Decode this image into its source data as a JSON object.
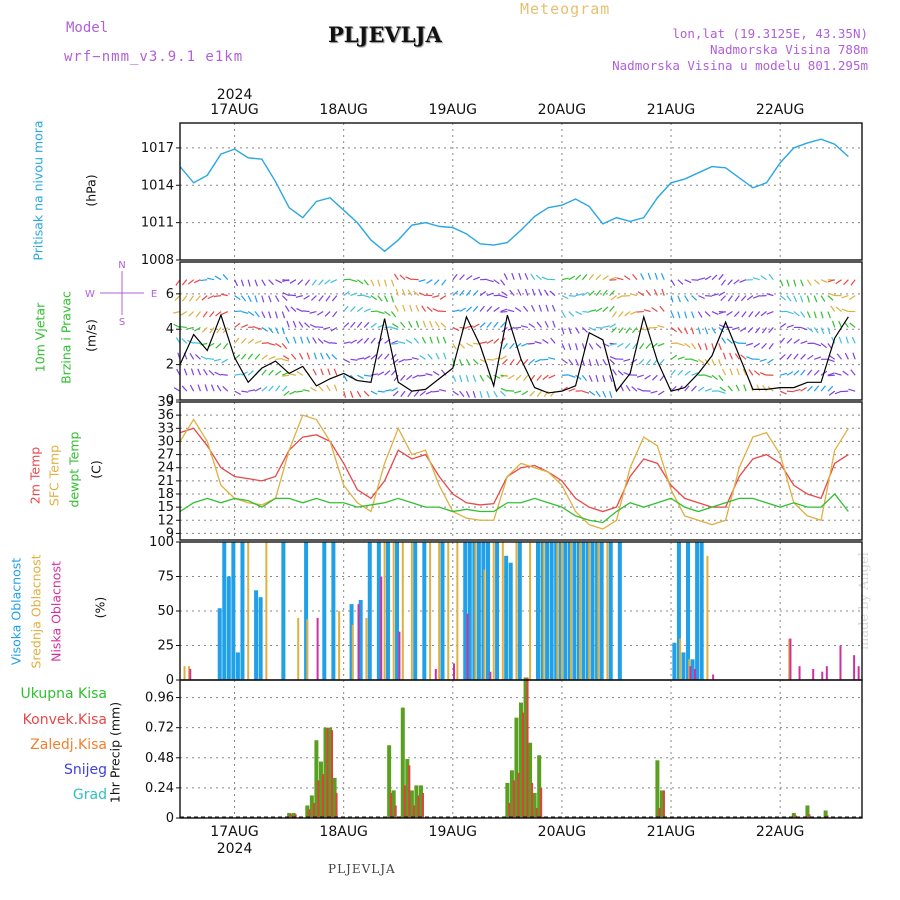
{
  "header": {
    "model_label": "Model",
    "model_name": "wrf−nmm_v3.9.1  e1km",
    "station": "PLJEVLJA",
    "meteogram_title": "Meteogram",
    "info_lines": [
      "lon,lat (19.3125E, 43.35N)",
      "Nadmorska Visina 788m",
      "Nadmorska Visina u modelu 801.295m"
    ],
    "footer_station": "PLJEVLJA",
    "watermark": "made by Angel"
  },
  "colors": {
    "pressure": "#29a8e0",
    "temp2m": "#e84848",
    "sfc": "#e0b040",
    "dewpt": "#30c030",
    "visoka": "#20a0e8",
    "srednja": "#e0b040",
    "niska": "#d030a0",
    "precip_total": "#5aa020",
    "precip_conv": "#e04040",
    "wind_purple": "#8040e0",
    "wind_speed": "#000000"
  },
  "axes": {
    "year_label": "2024",
    "date_labels": [
      "17AUG",
      "18AUG",
      "19AUG",
      "20AUG",
      "21AUG",
      "22AUG"
    ],
    "wind_compass": {
      "n": "N",
      "w": "W",
      "e": "E",
      "s": "S"
    }
  },
  "panel_labels": {
    "pressure": {
      "name": "Pritisak na nivou mora",
      "unit": "(hPa)"
    },
    "wind": {
      "name1": "10m Vjetar",
      "name2": "Brzina i Pravac",
      "unit": "(m/s)"
    },
    "temp": {
      "name1": "2m Temp",
      "name2": "SFC Temp",
      "name3": "dewpt Temp",
      "unit": "(C)"
    },
    "cloud": {
      "name1": "Visoka Oblacnost",
      "name2": "Srednja Oblacnost",
      "name3": "Niska Oblacnost",
      "unit": "(%)"
    },
    "precip": {
      "legend": [
        "Ukupna Kisa",
        "Konvek.Kisa",
        "Zaledj.Kisa",
        "Snijeg",
        "Grad"
      ],
      "unit": "1hr Precip (mm)"
    }
  },
  "chart_data": [
    {
      "type": "line",
      "panel": "pressure",
      "x_unit": "hours since 16 Aug 12 UTC",
      "ylim": [
        1008,
        1019
      ],
      "yticks": [
        1008,
        1011,
        1014,
        1017
      ],
      "series": [
        {
          "x": [
            0,
            3,
            6,
            9,
            12,
            15,
            18,
            21,
            24,
            27,
            30,
            33,
            36,
            39,
            42,
            45,
            48,
            51,
            54,
            57,
            60,
            63,
            66,
            69,
            72,
            75,
            78,
            81,
            84,
            87,
            90,
            93,
            96,
            99,
            102,
            105,
            108,
            111,
            114,
            117,
            120,
            123,
            126,
            129,
            132,
            135,
            138,
            141,
            144,
            147
          ],
          "values": [
            1015.5,
            1014.2,
            1014.8,
            1016.5,
            1016.9,
            1016.2,
            1016.1,
            1014.3,
            1012.2,
            1011.4,
            1012.7,
            1013.0,
            1012.0,
            1011.0,
            1009.6,
            1008.7,
            1009.6,
            1010.8,
            1011.0,
            1010.7,
            1010.6,
            1010.1,
            1009.3,
            1009.2,
            1009.4,
            1010.4,
            1011.5,
            1012.2,
            1012.4,
            1012.9,
            1012.3,
            1010.9,
            1011.4,
            1011.1,
            1011.4,
            1013.0,
            1014.2,
            1014.5,
            1015.0,
            1015.5,
            1015.4,
            1014.6,
            1013.8,
            1014.2,
            1015.8,
            1017.0,
            1017.4,
            1017.7,
            1017.3,
            1016.3
          ]
        }
      ]
    },
    {
      "type": "line",
      "panel": "wind",
      "ylim": [
        0,
        7.8
      ],
      "yticks": [
        0,
        2,
        4,
        6
      ],
      "series": [
        {
          "x": [
            0,
            3,
            6,
            9,
            12,
            15,
            18,
            21,
            24,
            27,
            30,
            33,
            36,
            39,
            42,
            45,
            48,
            51,
            54,
            57,
            60,
            63,
            66,
            69,
            72,
            75,
            78,
            81,
            84,
            87,
            90,
            93,
            96,
            99,
            102,
            105,
            108,
            111,
            114,
            117,
            120,
            123,
            126,
            129,
            132,
            135,
            138,
            141,
            144,
            147
          ],
          "values": [
            2.0,
            3.7,
            2.8,
            4.8,
            2.4,
            1.0,
            1.8,
            2.2,
            1.5,
            1.9,
            0.8,
            1.2,
            1.5,
            1.1,
            1.0,
            4.6,
            1.0,
            0.5,
            0.6,
            1.2,
            1.8,
            4.7,
            3.1,
            0.8,
            4.8,
            2.3,
            0.7,
            0.4,
            0.5,
            0.8,
            3.8,
            3.4,
            0.5,
            1.5,
            4.7,
            2.2,
            0.5,
            0.7,
            1.5,
            2.5,
            4.4,
            2.5,
            0.6,
            0.6,
            0.7,
            0.7,
            1.0,
            1.0,
            3.5,
            4.7
          ]
        }
      ]
    },
    {
      "type": "line",
      "panel": "temperature",
      "ylim": [
        7.5,
        39
      ],
      "yticks": [
        9,
        12,
        15,
        18,
        21,
        24,
        27,
        30,
        33,
        36,
        39
      ],
      "series": [
        {
          "name": "2m Temp",
          "x": [
            0,
            3,
            6,
            9,
            12,
            15,
            18,
            21,
            24,
            27,
            30,
            33,
            36,
            39,
            42,
            45,
            48,
            51,
            54,
            57,
            60,
            63,
            66,
            69,
            72,
            75,
            78,
            81,
            84,
            87,
            90,
            93,
            96,
            99,
            102,
            105,
            108,
            111,
            114,
            117,
            120,
            123,
            126,
            129,
            132,
            135,
            138,
            141,
            144,
            147
          ],
          "values": [
            32,
            33,
            29,
            24,
            22,
            21.5,
            21,
            22,
            28,
            31,
            31.5,
            30,
            25,
            19,
            17,
            21,
            28,
            26,
            27,
            22,
            18,
            16,
            15.5,
            15.8,
            22,
            24,
            24.5,
            23,
            21,
            17,
            15,
            14,
            15,
            22,
            26,
            25,
            20,
            17,
            16,
            15,
            15,
            22,
            26,
            27,
            25,
            20,
            18,
            17,
            25,
            27
          ]
        },
        {
          "name": "SFC Temp",
          "x": [
            0,
            3,
            6,
            9,
            12,
            15,
            18,
            21,
            24,
            27,
            30,
            33,
            36,
            39,
            42,
            45,
            48,
            51,
            54,
            57,
            60,
            63,
            66,
            69,
            72,
            75,
            78,
            81,
            84,
            87,
            90,
            93,
            96,
            99,
            102,
            105,
            108,
            111,
            114,
            117,
            120,
            123,
            126,
            129,
            132,
            135,
            138,
            141,
            144,
            147
          ],
          "values": [
            30,
            35,
            30,
            20,
            17,
            16,
            15.5,
            17,
            28,
            36,
            35,
            30,
            20,
            16,
            14,
            25,
            33,
            27,
            28,
            20,
            14,
            12.5,
            12,
            12,
            22,
            25,
            24,
            23,
            20,
            14,
            11,
            10,
            12,
            24,
            31,
            29,
            19,
            13,
            12,
            11,
            12,
            24,
            31,
            32,
            27,
            16,
            13,
            12,
            28,
            33
          ]
        },
        {
          "name": "dewpt Temp",
          "x": [
            0,
            3,
            6,
            9,
            12,
            15,
            18,
            21,
            24,
            27,
            30,
            33,
            36,
            39,
            42,
            45,
            48,
            51,
            54,
            57,
            60,
            63,
            66,
            69,
            72,
            75,
            78,
            81,
            84,
            87,
            90,
            93,
            96,
            99,
            102,
            105,
            108,
            111,
            114,
            117,
            120,
            123,
            126,
            129,
            132,
            135,
            138,
            141,
            144,
            147
          ],
          "values": [
            14,
            16,
            17,
            16,
            17,
            16.5,
            15,
            17,
            17,
            16,
            17,
            16,
            16,
            15,
            15.5,
            16,
            17,
            16,
            15,
            15,
            14,
            14.5,
            14,
            14,
            16,
            16,
            17,
            16,
            15,
            13,
            12,
            11.5,
            14,
            16,
            15,
            16,
            17,
            15,
            14,
            15,
            16,
            17,
            17,
            16,
            15,
            16,
            15,
            15,
            18,
            14
          ]
        }
      ]
    },
    {
      "type": "bar",
      "panel": "cloud",
      "ylim": [
        0,
        100
      ],
      "yticks": [
        0,
        25,
        50,
        75,
        100
      ],
      "series": [
        {
          "name": "Visoka Oblacnost",
          "x": [
            9,
            10,
            11,
            12,
            13,
            14,
            17,
            18,
            23,
            28,
            32,
            34,
            38,
            40,
            42,
            44,
            46,
            48,
            52,
            54,
            58,
            63,
            64,
            65,
            66,
            67,
            68,
            70,
            72,
            73,
            75,
            79,
            80,
            81,
            82,
            83,
            84,
            85,
            86,
            87,
            88,
            89,
            90,
            91,
            92,
            93,
            95,
            97,
            109,
            110,
            111,
            112,
            113,
            114,
            115
          ],
          "values": [
            52,
            100,
            75,
            100,
            20,
            100,
            65,
            60,
            100,
            100,
            100,
            100,
            55,
            58,
            100,
            100,
            100,
            100,
            100,
            100,
            100,
            100,
            100,
            100,
            100,
            100,
            100,
            100,
            90,
            85,
            100,
            100,
            100,
            100,
            100,
            100,
            100,
            100,
            100,
            100,
            100,
            100,
            100,
            100,
            100,
            100,
            100,
            100,
            27,
            100,
            20,
            100,
            15,
            100,
            100
          ]
        },
        {
          "name": "Srednja Oblacnost",
          "x": [
            1,
            2,
            15,
            19,
            26,
            28,
            35,
            38,
            41,
            45,
            47,
            49,
            51,
            55,
            57,
            59,
            61,
            65,
            67,
            69,
            71,
            74,
            77,
            80,
            83,
            84,
            86,
            88,
            90,
            92,
            94,
            110,
            112,
            116,
            134
          ],
          "values": [
            10,
            10,
            100,
            100,
            45,
            44,
            50,
            40,
            45,
            100,
            100,
            100,
            100,
            100,
            100,
            100,
            100,
            100,
            80,
            100,
            100,
            100,
            100,
            100,
            100,
            100,
            100,
            100,
            100,
            100,
            100,
            30,
            15,
            90,
            30
          ]
        },
        {
          "name": "Niska Oblacnost",
          "x": [
            2,
            30,
            39,
            44,
            48,
            56,
            60,
            63,
            68,
            112,
            113,
            117,
            134,
            136,
            139,
            141,
            142,
            145,
            148,
            149
          ],
          "values": [
            8,
            45,
            55,
            75,
            35,
            8,
            12,
            48,
            6,
            10,
            8,
            4,
            30,
            10,
            8,
            6,
            10,
            25,
            18,
            10
          ]
        }
      ]
    },
    {
      "type": "bar",
      "panel": "precip",
      "ylim": [
        0,
        1.1
      ],
      "yticks": [
        0,
        0.24,
        0.48,
        0.72,
        0.96
      ],
      "series": [
        {
          "name": "Ukupna Kisa",
          "x": [
            24,
            25,
            28,
            29,
            30,
            31,
            32,
            33,
            34,
            46,
            47,
            49,
            50,
            51,
            52,
            53,
            72,
            73,
            74,
            75,
            76,
            77,
            78,
            79,
            80,
            105,
            106,
            135,
            138,
            142
          ],
          "values": [
            0.04,
            0.04,
            0.1,
            0.18,
            0.62,
            0.45,
            0.72,
            0.72,
            0.32,
            0.58,
            0.22,
            0.88,
            0.47,
            0.22,
            0.26,
            0.26,
            0.28,
            0.38,
            0.8,
            0.92,
            1.12,
            0.6,
            0.2,
            0.5,
            0.01,
            0.46,
            0.22,
            0.04,
            0.1,
            0.06
          ]
        },
        {
          "name": "Konvek.Kisa",
          "x": [
            24,
            25,
            28,
            29,
            30,
            31,
            32,
            33,
            34,
            46,
            47,
            49,
            50,
            51,
            52,
            53,
            72,
            73,
            74,
            75,
            76,
            77,
            78,
            79,
            80,
            105,
            106,
            135,
            138,
            142
          ],
          "values": [
            0.03,
            0.03,
            0.07,
            0.12,
            0.3,
            0.35,
            0.72,
            0.7,
            0.2,
            0.2,
            0.1,
            0.26,
            0.42,
            0.1,
            0.18,
            0.2,
            0.12,
            0.3,
            0.36,
            0.84,
            1.12,
            0.28,
            0.08,
            0.24,
            0.0,
            0.08,
            0.22,
            0.02,
            0.03,
            0.02
          ]
        }
      ]
    }
  ]
}
